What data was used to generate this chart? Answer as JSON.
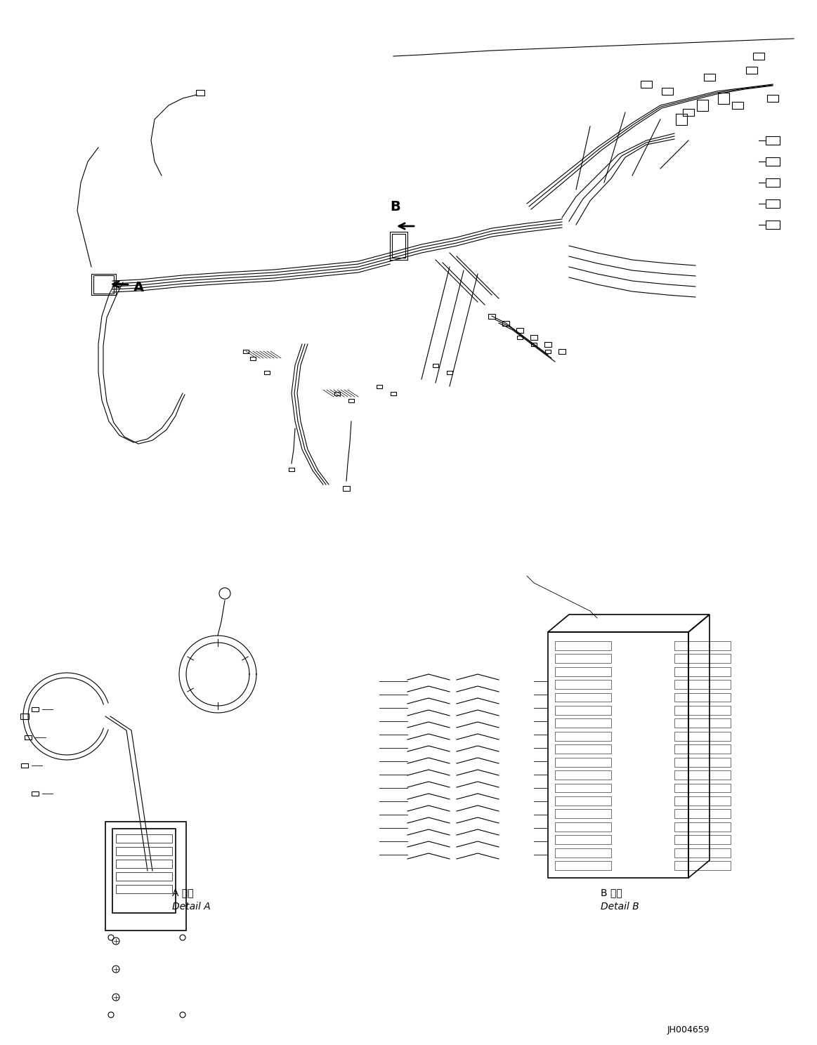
{
  "bg_color": "#ffffff",
  "line_color": "#000000",
  "label_A": "A",
  "label_B": "B",
  "detail_A_japanese": "A 詳細",
  "detail_A_english": "Detail A",
  "detail_B_japanese": "B 詳細",
  "detail_B_english": "Detail B",
  "part_number": "JH004659",
  "figsize": [
    11.63,
    14.88
  ],
  "dpi": 100
}
